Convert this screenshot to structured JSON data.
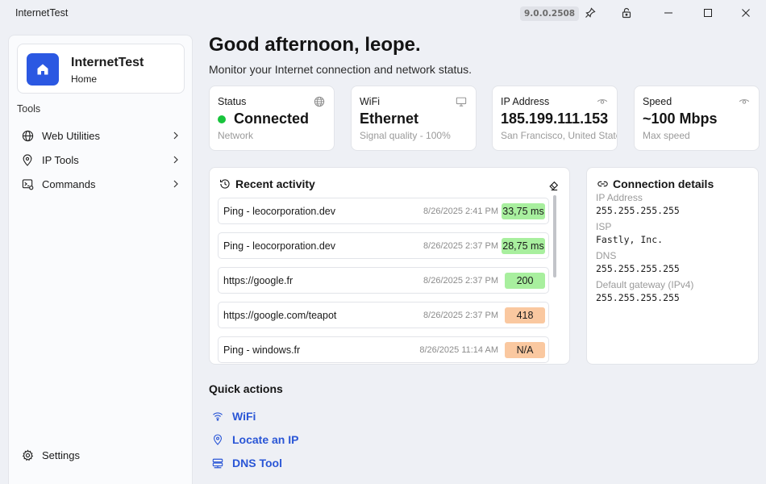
{
  "window": {
    "title": "InternetTest",
    "version": "9.0.0.2508"
  },
  "sidebar": {
    "app_name": "InternetTest",
    "app_page": "Home",
    "section_label": "Tools",
    "items": [
      {
        "label": "Web Utilities",
        "icon": "globe-icon"
      },
      {
        "label": "IP Tools",
        "icon": "location-pin-icon"
      },
      {
        "label": "Commands",
        "icon": "command-icon"
      }
    ],
    "settings_label": "Settings"
  },
  "header": {
    "greeting": "Good afternoon, leope.",
    "subtitle": "Monitor your Internet connection and network status."
  },
  "stats": [
    {
      "label": "Status",
      "value": "Connected",
      "sub": "Network",
      "icon": "globe-icon"
    },
    {
      "label": "WiFi",
      "value": "Ethernet",
      "sub": "Signal quality - 100%",
      "icon": "monitor-icon"
    },
    {
      "label": "IP Address",
      "value": "185.199.111.153",
      "sub": "San Francisco, United States",
      "icon": "eye-icon"
    },
    {
      "label": "Speed",
      "value": "~100 Mbps",
      "sub": "Max speed",
      "icon": "eye-icon"
    }
  ],
  "recent_activity": {
    "title": "Recent activity",
    "items": [
      {
        "name": "Ping - leocorporation.dev",
        "time": "8/26/2025 2:41 PM",
        "result": "33,75 ms",
        "status": "success"
      },
      {
        "name": "Ping - leocorporation.dev",
        "time": "8/26/2025 2:37 PM",
        "result": "28,75 ms",
        "status": "success"
      },
      {
        "name": "https://google.fr",
        "time": "8/26/2025 2:37 PM",
        "result": "200",
        "status": "success"
      },
      {
        "name": "https://google.com/teapot",
        "time": "8/26/2025 2:37 PM",
        "result": "418",
        "status": "warning"
      },
      {
        "name": "Ping - windows.fr",
        "time": "8/26/2025 11:14 AM",
        "result": "N/A",
        "status": "warning"
      }
    ]
  },
  "connection_details": {
    "title": "Connection details",
    "fields": [
      {
        "label": "IP Address",
        "value": "255.255.255.255"
      },
      {
        "label": "ISP",
        "value": "Fastly, Inc."
      },
      {
        "label": "DNS",
        "value": "255.255.255.255"
      },
      {
        "label": "Default gateway (IPv4)",
        "value": "255.255.255.255"
      }
    ]
  },
  "quick_actions": {
    "title": "Quick actions",
    "items": [
      {
        "label": "WiFi",
        "icon": "wifi-icon"
      },
      {
        "label": "Locate an IP",
        "icon": "location-pin-icon"
      },
      {
        "label": "DNS Tool",
        "icon": "server-icon"
      }
    ]
  },
  "colors": {
    "accent": "#2b58e2",
    "link": "#2a56d6",
    "success_bg": "#a8ef9e",
    "warning_bg": "#fac8a0",
    "connected_dot": "#18c43c"
  }
}
